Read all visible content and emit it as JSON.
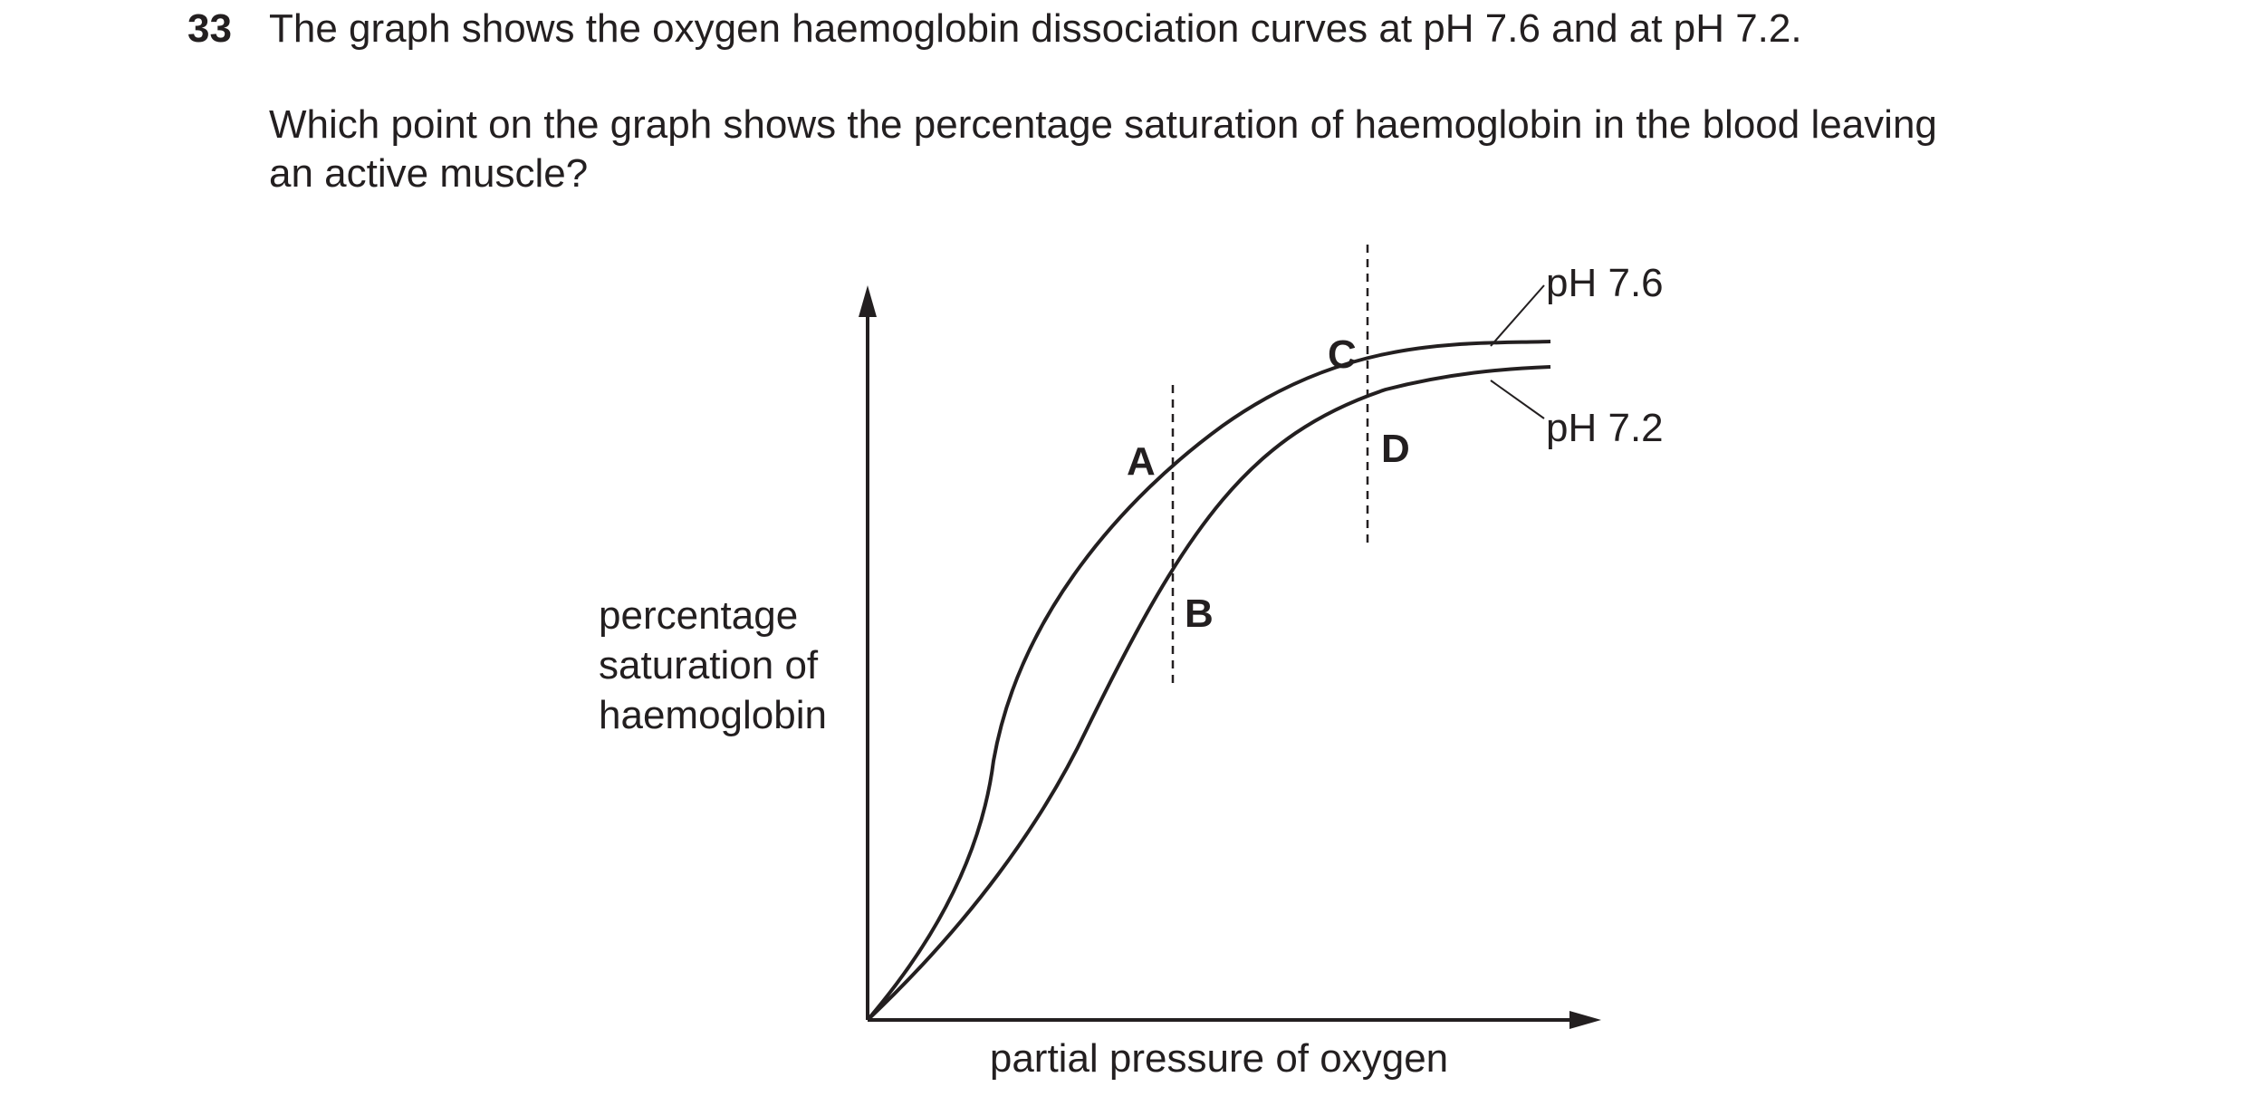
{
  "question": {
    "number": "33",
    "line1": "The graph shows the oxygen haemoglobin dissociation curves at pH 7.6 and at pH 7.2.",
    "line2": "Which point on the graph shows the percentage saturation of haemoglobin in the blood leaving",
    "line3": "an active muscle?"
  },
  "chart_data": {
    "type": "line",
    "xlabel": "partial pressure of oxygen",
    "ylabel_lines": [
      "percentage",
      "saturation of",
      "haemoglobin"
    ],
    "axis_ticks": "none",
    "grid": false,
    "series": [
      {
        "name": "pH 7.6",
        "points": [
          [
            0,
            0
          ],
          [
            5,
            15
          ],
          [
            10,
            33
          ],
          [
            20,
            58
          ],
          [
            30,
            72
          ],
          [
            40,
            81
          ],
          [
            50,
            88
          ],
          [
            60,
            92
          ],
          [
            70,
            94
          ]
        ]
      },
      {
        "name": "pH 7.2",
        "points": [
          [
            0,
            0
          ],
          [
            10,
            15
          ],
          [
            20,
            36
          ],
          [
            30,
            54
          ],
          [
            40,
            68
          ],
          [
            50,
            78
          ],
          [
            60,
            85
          ],
          [
            70,
            89
          ]
        ]
      }
    ],
    "reference_lines": [
      {
        "x": 32.5,
        "y_range": [
          43,
          86
        ],
        "style": "dashed"
      },
      {
        "x": 52.5,
        "y_range": [
          67,
          110
        ],
        "style": "dashed"
      }
    ],
    "points": [
      {
        "label": "A",
        "x": 32.5,
        "y": 76,
        "curve": "pH 7.6"
      },
      {
        "label": "B",
        "x": 32.5,
        "y": 57.5,
        "curve": "pH 7.2"
      },
      {
        "label": "C",
        "x": 52.5,
        "y": 93,
        "curve": "pH 7.6"
      },
      {
        "label": "D",
        "x": 52.5,
        "y": 85.5,
        "curve": "pH 7.2"
      }
    ]
  }
}
